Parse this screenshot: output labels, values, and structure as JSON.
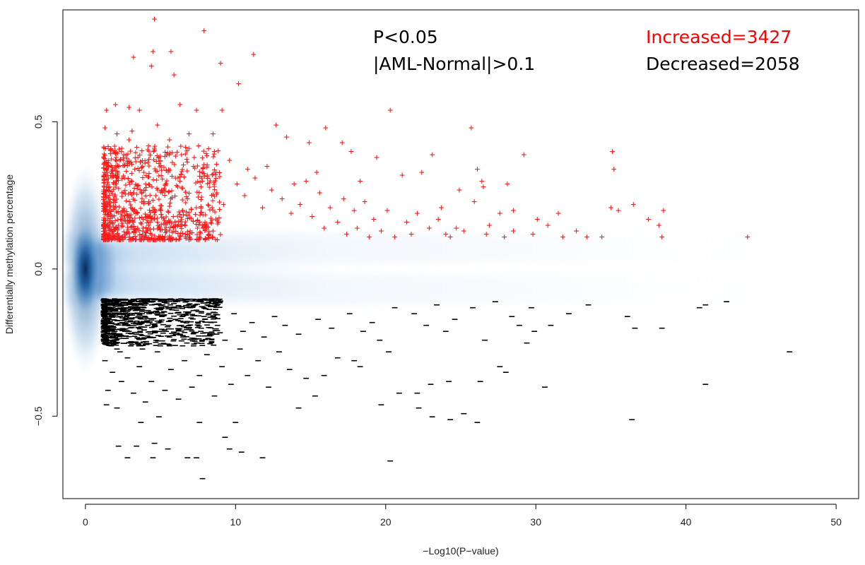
{
  "chart_data": {
    "type": "scatter",
    "title": "",
    "xlabel": "−Log10(P−value)",
    "ylabel": "Differentially methylation percentage",
    "xlim": [
      -1.5,
      51.5
    ],
    "ylim": [
      -0.78,
      0.88
    ],
    "x_ticks": [
      0,
      10,
      20,
      30,
      40,
      50
    ],
    "x_tick_labels": [
      "0",
      "10",
      "20",
      "30",
      "40",
      "50"
    ],
    "y_ticks": [
      -0.5,
      0.0,
      0.5
    ],
    "y_tick_labels": [
      "−0.5",
      "0.0",
      "0.5"
    ],
    "grid": false,
    "background": "smoothed density (blue) of all CpG sites, concentrated near (0, 0)",
    "annotations": {
      "criteria_line1": "P<0.05",
      "criteria_line2": "|AML-Normal|>0.1",
      "increased": "Increased=3427",
      "decreased": "Decreased=2058"
    },
    "colors": {
      "increased": "#ff0000",
      "decreased": "#000000",
      "density": "#1f5f9f"
    },
    "series": [
      {
        "name": "Increased",
        "marker": "+",
        "color": "#ff0000",
        "points": [
          [
            4.6,
            0.85
          ],
          [
            7.9,
            0.81
          ],
          [
            3.2,
            0.72
          ],
          [
            4.5,
            0.74
          ],
          [
            5.7,
            0.74
          ],
          [
            4.4,
            0.69
          ],
          [
            5.9,
            0.66
          ],
          [
            9.0,
            0.7
          ],
          [
            11.2,
            0.73
          ],
          [
            10.2,
            0.63
          ],
          [
            1.4,
            0.54
          ],
          [
            2.0,
            0.56
          ],
          [
            2.9,
            0.55
          ],
          [
            3.6,
            0.54
          ],
          [
            6.3,
            0.56
          ],
          [
            7.4,
            0.54
          ],
          [
            9.1,
            0.54
          ],
          [
            20.3,
            0.54
          ],
          [
            25.7,
            0.48
          ],
          [
            16.0,
            0.48
          ],
          [
            12.7,
            0.49
          ],
          [
            3.1,
            0.47
          ],
          [
            4.8,
            0.49
          ],
          [
            6.9,
            0.46
          ],
          [
            8.5,
            0.46
          ],
          [
            13.4,
            0.45
          ],
          [
            14.9,
            0.43
          ],
          [
            17.1,
            0.43
          ],
          [
            17.7,
            0.4
          ],
          [
            19.4,
            0.38
          ],
          [
            23.1,
            0.39
          ],
          [
            29.2,
            0.39
          ],
          [
            35.1,
            0.4
          ],
          [
            35.2,
            0.34
          ],
          [
            26.1,
            0.34
          ],
          [
            22.4,
            0.33
          ],
          [
            26.4,
            0.3
          ],
          [
            26.5,
            0.28
          ],
          [
            24.9,
            0.27
          ],
          [
            28.1,
            0.29
          ],
          [
            21.1,
            0.32
          ],
          [
            18.3,
            0.3
          ],
          [
            15.4,
            0.33
          ],
          [
            12.1,
            0.35
          ],
          [
            10.8,
            0.34
          ],
          [
            23.7,
            0.21
          ],
          [
            25.9,
            0.23
          ],
          [
            27.6,
            0.19
          ],
          [
            28.5,
            0.2
          ],
          [
            30.1,
            0.17
          ],
          [
            31.5,
            0.19
          ],
          [
            32.7,
            0.13
          ],
          [
            33.4,
            0.11
          ],
          [
            34.4,
            0.11
          ],
          [
            35.0,
            0.21
          ],
          [
            35.5,
            0.2
          ],
          [
            36.5,
            0.22
          ],
          [
            37.5,
            0.17
          ],
          [
            38.2,
            0.15
          ],
          [
            38.5,
            0.2
          ],
          [
            38.4,
            0.11
          ],
          [
            44.1,
            0.11
          ],
          [
            31.8,
            0.11
          ],
          [
            30.8,
            0.15
          ],
          [
            29.8,
            0.12
          ],
          [
            28.5,
            0.13
          ],
          [
            27.9,
            0.11
          ],
          [
            26.7,
            0.12
          ],
          [
            25.2,
            0.13
          ],
          [
            24.3,
            0.11
          ],
          [
            22.9,
            0.14
          ],
          [
            21.7,
            0.12
          ],
          [
            20.6,
            0.11
          ],
          [
            19.7,
            0.13
          ],
          [
            18.9,
            0.11
          ],
          [
            18.1,
            0.14
          ],
          [
            17.4,
            0.12
          ],
          [
            16.8,
            0.16
          ],
          [
            15.9,
            0.14
          ],
          [
            15.1,
            0.18
          ],
          [
            14.3,
            0.22
          ],
          [
            13.7,
            0.19
          ],
          [
            13.1,
            0.24
          ],
          [
            12.4,
            0.27
          ],
          [
            11.8,
            0.21
          ],
          [
            11.3,
            0.31
          ],
          [
            10.6,
            0.25
          ],
          [
            10.1,
            0.29
          ],
          [
            9.6,
            0.37
          ],
          [
            9.2,
            0.22
          ],
          [
            8.7,
            0.33
          ],
          [
            8.2,
            0.41
          ],
          [
            7.7,
            0.28
          ],
          [
            7.2,
            0.35
          ],
          [
            6.8,
            0.24
          ],
          [
            6.4,
            0.39
          ],
          [
            6.0,
            0.31
          ],
          [
            5.6,
            0.44
          ],
          [
            5.2,
            0.27
          ],
          [
            4.9,
            0.36
          ],
          [
            4.5,
            0.21
          ],
          [
            4.2,
            0.42
          ],
          [
            3.9,
            0.33
          ],
          [
            3.5,
            0.38
          ],
          [
            3.2,
            0.26
          ],
          [
            2.9,
            0.44
          ],
          [
            2.6,
            0.31
          ],
          [
            2.3,
            0.37
          ],
          [
            2.1,
            0.46
          ],
          [
            1.9,
            0.29
          ],
          [
            1.7,
            0.41
          ],
          [
            1.5,
            0.35
          ],
          [
            1.3,
            0.48
          ],
          [
            1.25,
            0.22
          ],
          [
            1.3,
            0.15
          ],
          [
            16.3,
            0.21
          ],
          [
            15.6,
            0.26
          ],
          [
            14.7,
            0.3
          ],
          [
            13.9,
            0.29
          ],
          [
            17.2,
            0.24
          ],
          [
            17.9,
            0.2
          ],
          [
            18.6,
            0.23
          ],
          [
            19.2,
            0.17
          ],
          [
            20.1,
            0.2
          ],
          [
            21.4,
            0.16
          ],
          [
            22.1,
            0.19
          ],
          [
            23.5,
            0.17
          ],
          [
            24.0,
            0.12
          ],
          [
            24.7,
            0.14
          ],
          [
            26.9,
            0.15
          ]
        ]
      },
      {
        "name": "Decreased",
        "marker": "–",
        "color": "#000000",
        "points": [
          [
            7.8,
            -0.71
          ],
          [
            4.5,
            -0.64
          ],
          [
            6.8,
            -0.64
          ],
          [
            7.4,
            -0.64
          ],
          [
            20.3,
            -0.65
          ],
          [
            11.8,
            -0.64
          ],
          [
            2.8,
            -0.64
          ],
          [
            2.2,
            -0.6
          ],
          [
            3.4,
            -0.6
          ],
          [
            4.6,
            -0.59
          ],
          [
            5.5,
            -0.61
          ],
          [
            9.6,
            -0.61
          ],
          [
            10.4,
            -0.62
          ],
          [
            9.3,
            -0.57
          ],
          [
            7.6,
            -0.52
          ],
          [
            10.0,
            -0.52
          ],
          [
            4.9,
            -0.5
          ],
          [
            3.7,
            -0.52
          ],
          [
            1.4,
            -0.46
          ],
          [
            2.1,
            -0.47
          ],
          [
            14.2,
            -0.47
          ],
          [
            15.3,
            -0.43
          ],
          [
            19.7,
            -0.46
          ],
          [
            20.9,
            -0.42
          ],
          [
            22.2,
            -0.47
          ],
          [
            23.1,
            -0.5
          ],
          [
            24.3,
            -0.51
          ],
          [
            25.2,
            -0.49
          ],
          [
            26.1,
            -0.52
          ],
          [
            36.4,
            -0.51
          ],
          [
            30.6,
            -0.4
          ],
          [
            41.3,
            -0.39
          ],
          [
            46.9,
            -0.28
          ],
          [
            40.9,
            -0.13
          ],
          [
            41.3,
            -0.12
          ],
          [
            42.7,
            -0.11
          ],
          [
            36.1,
            -0.16
          ],
          [
            36.6,
            -0.2
          ],
          [
            38.4,
            -0.2
          ],
          [
            29.4,
            -0.25
          ],
          [
            29.9,
            -0.21
          ],
          [
            27.6,
            -0.33
          ],
          [
            28.0,
            -0.35
          ],
          [
            26.3,
            -0.38
          ],
          [
            24.2,
            -0.38
          ],
          [
            23.0,
            -0.39
          ],
          [
            22.1,
            -0.42
          ],
          [
            20.2,
            -0.28
          ],
          [
            19.6,
            -0.24
          ],
          [
            18.3,
            -0.33
          ],
          [
            17.9,
            -0.31
          ],
          [
            16.8,
            -0.3
          ],
          [
            15.9,
            -0.36
          ],
          [
            14.7,
            -0.37
          ],
          [
            13.6,
            -0.34
          ],
          [
            12.9,
            -0.28
          ],
          [
            12.2,
            -0.4
          ],
          [
            11.5,
            -0.31
          ],
          [
            10.8,
            -0.36
          ],
          [
            10.3,
            -0.27
          ],
          [
            9.7,
            -0.39
          ],
          [
            9.1,
            -0.33
          ],
          [
            8.6,
            -0.43
          ],
          [
            8.1,
            -0.29
          ],
          [
            7.6,
            -0.36
          ],
          [
            7.1,
            -0.4
          ],
          [
            6.6,
            -0.31
          ],
          [
            6.2,
            -0.44
          ],
          [
            5.7,
            -0.34
          ],
          [
            5.3,
            -0.41
          ],
          [
            4.8,
            -0.28
          ],
          [
            4.4,
            -0.38
          ],
          [
            4.0,
            -0.45
          ],
          [
            3.6,
            -0.33
          ],
          [
            3.2,
            -0.42
          ],
          [
            2.8,
            -0.3
          ],
          [
            2.4,
            -0.38
          ],
          [
            2.1,
            -0.27
          ],
          [
            1.8,
            -0.35
          ],
          [
            1.5,
            -0.41
          ],
          [
            1.3,
            -0.31
          ],
          [
            20.6,
            -0.13
          ],
          [
            21.9,
            -0.15
          ],
          [
            23.4,
            -0.12
          ],
          [
            24.6,
            -0.17
          ],
          [
            25.8,
            -0.13
          ],
          [
            27.3,
            -0.11
          ],
          [
            28.4,
            -0.16
          ],
          [
            29.7,
            -0.13
          ],
          [
            31.0,
            -0.19
          ],
          [
            32.2,
            -0.15
          ],
          [
            33.5,
            -0.12
          ],
          [
            22.7,
            -0.19
          ],
          [
            24.0,
            -0.21
          ],
          [
            26.6,
            -0.24
          ],
          [
            28.9,
            -0.19
          ],
          [
            19.1,
            -0.18
          ],
          [
            18.5,
            -0.21
          ],
          [
            17.6,
            -0.15
          ],
          [
            16.4,
            -0.2
          ],
          [
            15.5,
            -0.17
          ],
          [
            14.2,
            -0.22
          ],
          [
            13.3,
            -0.19
          ],
          [
            12.6,
            -0.16
          ],
          [
            11.9,
            -0.23
          ],
          [
            11.1,
            -0.18
          ],
          [
            10.5,
            -0.21
          ],
          [
            9.9,
            -0.15
          ],
          [
            9.3,
            -0.24
          ],
          [
            8.8,
            -0.19
          ],
          [
            8.3,
            -0.22
          ],
          [
            7.9,
            -0.16
          ],
          [
            7.4,
            -0.25
          ],
          [
            6.9,
            -0.2
          ],
          [
            6.5,
            -0.23
          ],
          [
            6.0,
            -0.17
          ],
          [
            5.6,
            -0.26
          ],
          [
            5.1,
            -0.21
          ],
          [
            4.7,
            -0.24
          ],
          [
            4.2,
            -0.18
          ],
          [
            3.8,
            -0.27
          ],
          [
            3.4,
            -0.22
          ],
          [
            3.0,
            -0.25
          ],
          [
            2.6,
            -0.19
          ],
          [
            2.3,
            -0.28
          ],
          [
            2.0,
            -0.23
          ],
          [
            1.7,
            -0.26
          ],
          [
            1.4,
            -0.2
          ],
          [
            1.2,
            -0.24
          ],
          [
            1.3,
            -0.13
          ],
          [
            1.6,
            -0.15
          ],
          [
            1.9,
            -0.12
          ],
          [
            2.5,
            -0.14
          ],
          [
            3.1,
            -0.11
          ],
          [
            3.9,
            -0.13
          ]
        ]
      }
    ],
    "dense_regions": [
      {
        "series": "Increased",
        "x_range": [
          1.2,
          9.0
        ],
        "y_range": [
          0.1,
          0.42
        ]
      },
      {
        "series": "Decreased",
        "x_range": [
          1.2,
          9.0
        ],
        "y_range": [
          -0.26,
          -0.1
        ]
      }
    ]
  }
}
